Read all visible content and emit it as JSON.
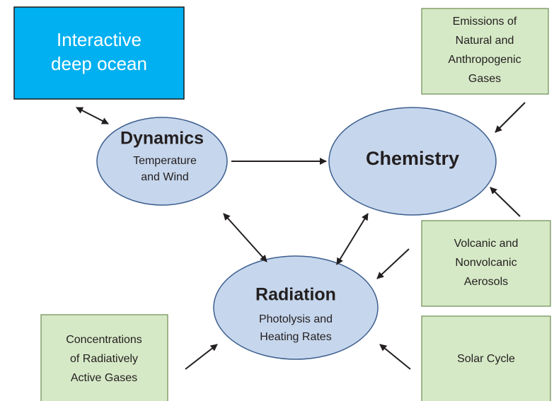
{
  "nodes": [
    {
      "lines": [
        "Interactive",
        "deep ocean"
      ]
    },
    {
      "title": "Dynamics",
      "lines": [
        "Temperature",
        "and Wind"
      ]
    },
    {
      "title": "Chemistry"
    },
    {
      "title": "Radiation",
      "lines": [
        "Photolysis and",
        "Heating Rates"
      ]
    },
    {
      "lines": [
        "Emissions of",
        "Natural and",
        "Anthropogenic",
        "Gases"
      ]
    },
    {
      "lines": [
        "Volcanic and",
        "Nonvolcanic",
        "Aerosols"
      ]
    },
    {
      "lines": [
        "Concentrations",
        "of Radiatively",
        "Active Gases"
      ]
    },
    {
      "lines": [
        "Solar Cycle"
      ]
    }
  ]
}
